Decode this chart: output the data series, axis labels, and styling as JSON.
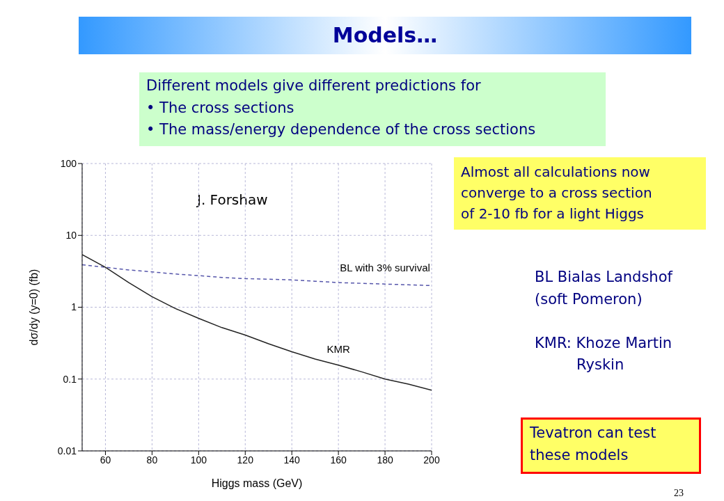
{
  "chart_data": {
    "type": "line",
    "title": "Models…",
    "xlabel": "Higgs mass (GeV)",
    "ylabel": "dσ/dy (y=0) (fb)",
    "log": "y",
    "grid": true,
    "x": [
      50,
      60,
      70,
      80,
      90,
      100,
      110,
      120,
      130,
      140,
      150,
      160,
      170,
      180,
      190,
      200
    ],
    "xlim": [
      50,
      200
    ],
    "xticks": [
      60,
      80,
      100,
      120,
      140,
      160,
      180,
      200
    ],
    "ylim": [
      0.01,
      100
    ],
    "yticks": [
      0.01,
      0.1,
      1,
      10,
      100
    ],
    "series": [
      {
        "name": "BL with 3% survival",
        "color": "#5555aa",
        "line_style": "dashed",
        "values": [
          3.9,
          3.6,
          3.3,
          3.1,
          2.9,
          2.75,
          2.6,
          2.5,
          2.45,
          2.4,
          2.3,
          2.2,
          2.15,
          2.1,
          2.05,
          2.0
        ]
      },
      {
        "name": "KMR",
        "color": "#222222",
        "line_style": "solid",
        "values": [
          5.4,
          3.6,
          2.2,
          1.4,
          0.96,
          0.7,
          0.52,
          0.41,
          0.31,
          0.24,
          0.19,
          0.156,
          0.126,
          0.1,
          0.085,
          0.07
        ]
      }
    ],
    "annotations": [
      "Different models give different predictions for\n• The cross sections\n• The mass/energy dependence of the cross sections",
      "J. Forshaw",
      "Almost all calculations now\nconverge to a cross section\nof 2-10 fb for a light Higgs",
      "BL Bialas Landshof\n(soft Pomeron)\n\nKMR: Khoze Martin\n         Ryskin",
      "Tevatron can test\nthese models",
      "23"
    ]
  }
}
